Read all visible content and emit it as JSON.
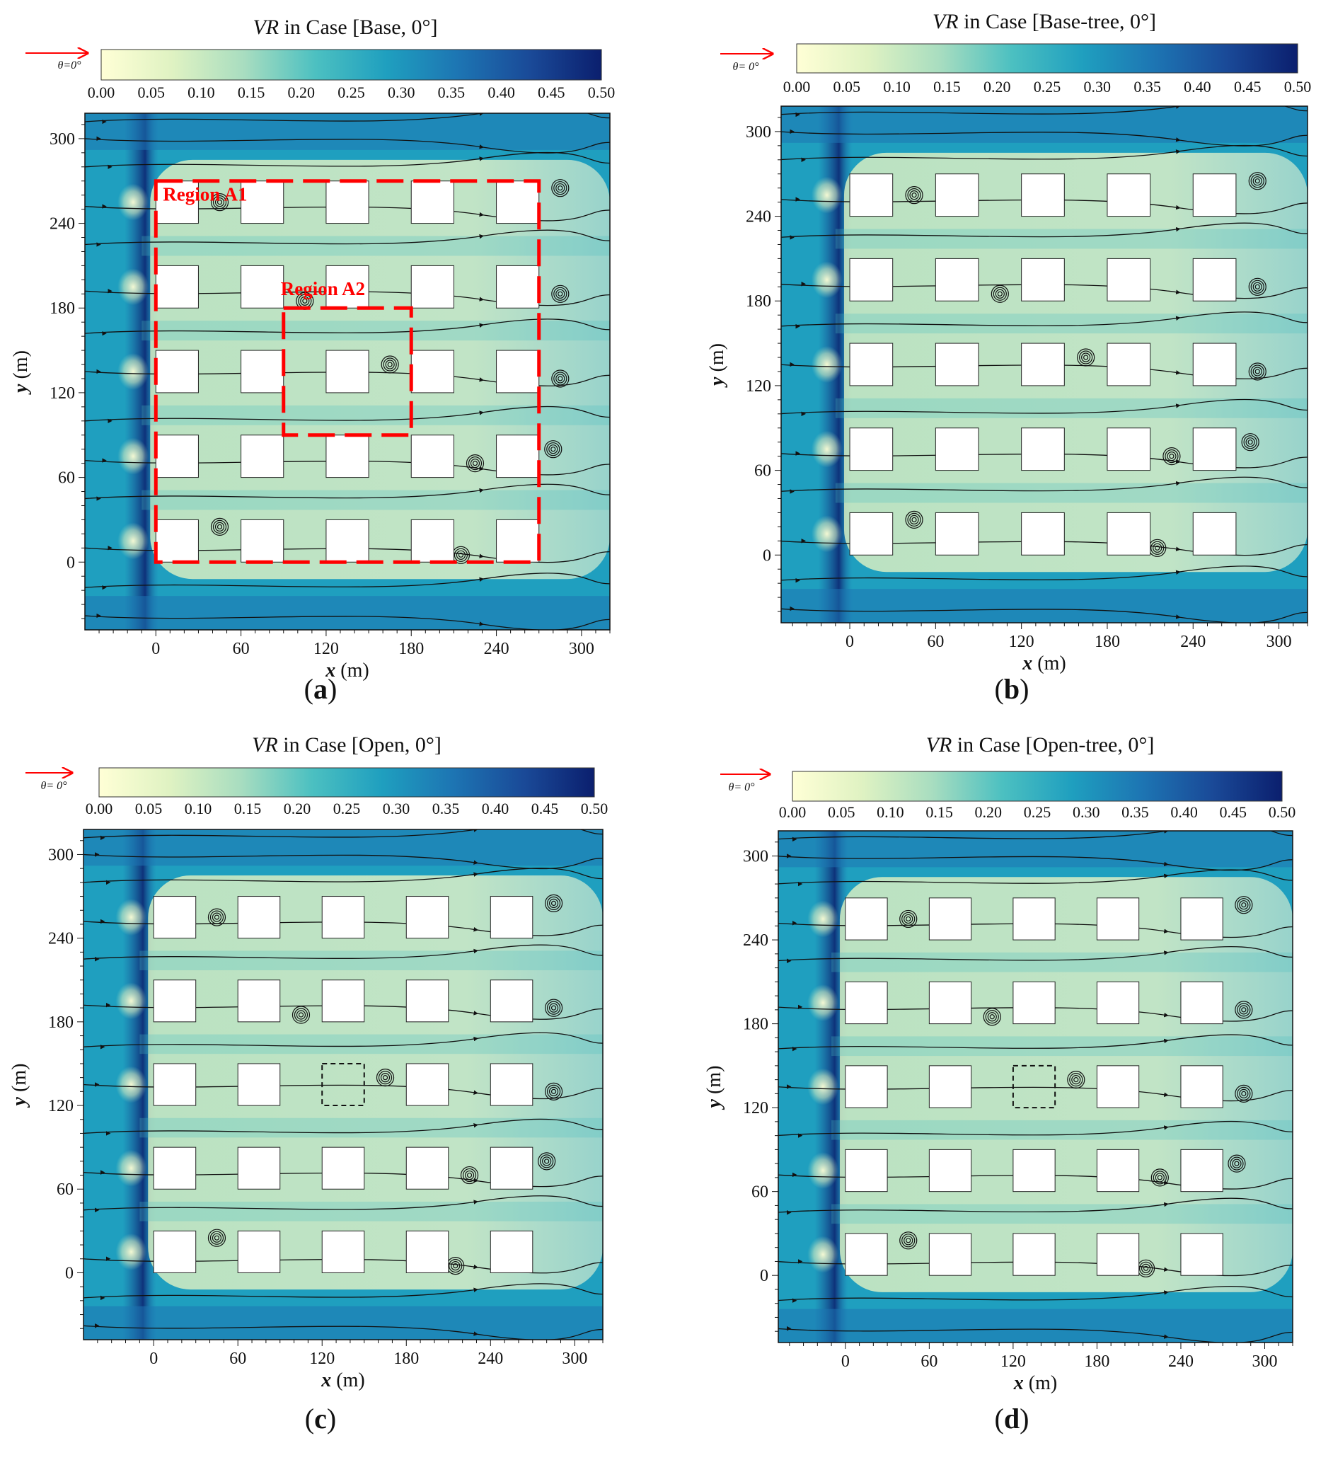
{
  "wind": {
    "label": "θ=0°",
    "label_b": "θ= 0°",
    "label_c": "θ= 0°",
    "label_d": "θ= 0°"
  },
  "palette": {
    "colormap": [
      "#ffffd6",
      "#dff2c2",
      "#a8ddc0",
      "#4cc0c1",
      "#1f9fbf",
      "#1d75b3",
      "#1a4a98",
      "#0b1f6e"
    ],
    "building_fill": "#ffffff",
    "region_outline": "#ff0000",
    "wind_arrow": "#ff0000"
  },
  "chart_data": [
    {
      "type": "heatmap",
      "panel_label": "(a)",
      "title_italic": "VR",
      "title_rest": " in Case [Base, 0°]",
      "colorbar": {
        "min": 0.0,
        "max": 0.5,
        "ticks": [
          "0.00",
          "0.05",
          "0.10",
          "0.15",
          "0.20",
          "0.25",
          "0.30",
          "0.35",
          "0.40",
          "0.45",
          "0.50"
        ]
      },
      "xlabel_italic": "x",
      "xlabel_rest": " (m)",
      "ylabel_italic": "y",
      "ylabel_rest": " (m)",
      "xticks": [
        0,
        60,
        120,
        180,
        240,
        300
      ],
      "yticks": [
        0,
        60,
        120,
        180,
        240,
        300
      ],
      "xlim": [
        -50,
        320
      ],
      "ylim": [
        -48,
        318
      ],
      "buildings_x": [
        0,
        60,
        120,
        180,
        240
      ],
      "buildings_y": [
        0,
        60,
        120,
        180,
        240
      ],
      "building_size": 30,
      "removed_buildings": [],
      "regions": [
        {
          "label": "Region A1",
          "x0": 0,
          "x1": 270,
          "y0": 0,
          "y1": 270
        },
        {
          "label": "Region A2",
          "x0": 90,
          "x1": 180,
          "y0": 90,
          "y1": 180
        }
      ],
      "center_box": null
    },
    {
      "type": "heatmap",
      "panel_label": "(b)",
      "title_italic": "VR",
      "title_rest": " in Case [Base-tree, 0°]",
      "colorbar": {
        "min": 0.0,
        "max": 0.5,
        "ticks": [
          "0.00",
          "0.05",
          "0.10",
          "0.15",
          "0.20",
          "0.25",
          "0.30",
          "0.35",
          "0.40",
          "0.45",
          "0.50"
        ]
      },
      "xlabel_italic": "x",
      "xlabel_rest": " (m)",
      "ylabel_italic": "y",
      "ylabel_rest": " (m)",
      "xticks": [
        0,
        60,
        120,
        180,
        240,
        300
      ],
      "yticks": [
        0,
        60,
        120,
        180,
        240,
        300
      ],
      "xlim": [
        -48,
        320
      ],
      "ylim": [
        -48,
        318
      ],
      "buildings_x": [
        0,
        60,
        120,
        180,
        240
      ],
      "buildings_y": [
        0,
        60,
        120,
        180,
        240
      ],
      "building_size": 30,
      "removed_buildings": [],
      "regions": [],
      "center_box": null
    },
    {
      "type": "heatmap",
      "panel_label": "(c)",
      "title_italic": "VR",
      "title_rest": " in Case [Open, 0°]",
      "colorbar": {
        "min": 0.0,
        "max": 0.5,
        "ticks": [
          "0.00",
          "0.05",
          "0.10",
          "0.15",
          "0.20",
          "0.25",
          "0.30",
          "0.35",
          "0.40",
          "0.45",
          "0.50"
        ]
      },
      "xlabel_italic": "x",
      "xlabel_rest": " (m)",
      "ylabel_italic": "y",
      "ylabel_rest": " (m)",
      "xticks": [
        0,
        60,
        120,
        180,
        240,
        300
      ],
      "yticks": [
        0,
        60,
        120,
        180,
        240,
        300
      ],
      "xlim": [
        -50,
        320
      ],
      "ylim": [
        -48,
        318
      ],
      "buildings_x": [
        0,
        60,
        120,
        180,
        240
      ],
      "buildings_y": [
        0,
        60,
        120,
        180,
        240
      ],
      "building_size": 30,
      "removed_buildings": [
        [
          120,
          120
        ]
      ],
      "regions": [],
      "center_box": {
        "x0": 120,
        "x1": 150,
        "y0": 120,
        "y1": 150
      }
    },
    {
      "type": "heatmap",
      "panel_label": "(d)",
      "title_italic": "VR",
      "title_rest": " in Case [Open-tree, 0°]",
      "colorbar": {
        "min": 0.0,
        "max": 0.5,
        "ticks": [
          "0.00",
          "0.05",
          "0.10",
          "0.15",
          "0.20",
          "0.25",
          "0.30",
          "0.35",
          "0.40",
          "0.45",
          "0.50"
        ]
      },
      "xlabel_italic": "x",
      "xlabel_rest": " (m)",
      "ylabel_italic": "y",
      "ylabel_rest": " (m)",
      "xticks": [
        0,
        60,
        120,
        180,
        240,
        300
      ],
      "yticks": [
        0,
        60,
        120,
        180,
        240,
        300
      ],
      "xlim": [
        -48,
        320
      ],
      "ylim": [
        -48,
        318
      ],
      "buildings_x": [
        0,
        60,
        120,
        180,
        240
      ],
      "buildings_y": [
        0,
        60,
        120,
        180,
        240
      ],
      "building_size": 30,
      "removed_buildings": [
        [
          120,
          120
        ]
      ],
      "regions": [],
      "center_box": {
        "x0": 120,
        "x1": 150,
        "y0": 120,
        "y1": 150
      }
    }
  ]
}
